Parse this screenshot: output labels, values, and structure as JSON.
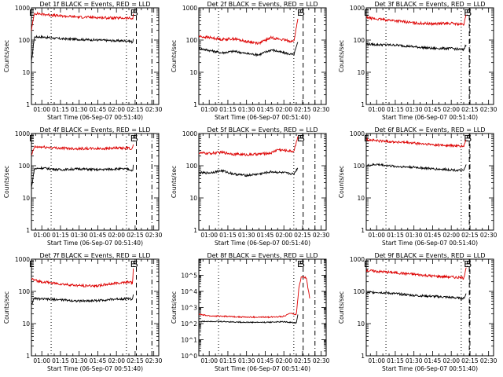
{
  "figure": {
    "panel_count": 9,
    "background": "#ffffff",
    "colors": {
      "events": "#000000",
      "lld": "#dd0000",
      "axes": "#000000"
    }
  },
  "chart_data": [
    {
      "type": "line",
      "title": "Det 1f BLACK = Events, RED = LLD",
      "xlabel": "Start Time (06-Sep-07 00:51:40)",
      "ylabel": "Counts/sec",
      "x_range": [
        "00:51:40",
        "02:34:00"
      ],
      "x_ticks": [
        "01:00",
        "01:15",
        "01:30",
        "01:45",
        "02:00",
        "02:15",
        "02:30"
      ],
      "ylim": [
        1,
        1000
      ],
      "y_ticks": [
        "1",
        "10",
        "100",
        "1000"
      ],
      "y_scale": "log",
      "markers": [
        {
          "label": "E",
          "time": "00:51:55"
        },
        {
          "label": "E",
          "time": "02:13:20"
        },
        {
          "label": "S",
          "time": "02:15:10"
        }
      ],
      "vlines": [
        {
          "time": "01:07:30",
          "style": "dotted"
        },
        {
          "time": "02:08:00",
          "style": "dotted"
        },
        {
          "time": "02:16:00",
          "style": "dashed"
        },
        {
          "time": "02:28:30",
          "style": "dashdot"
        }
      ],
      "series": [
        {
          "name": "Events",
          "color": "#000000",
          "x": [
            "00:51:40",
            "00:54:00",
            "01:00",
            "01:15",
            "01:30",
            "01:45",
            "02:00",
            "02:10",
            "02:13:00",
            "02:13:40"
          ],
          "values": [
            20,
            125,
            125,
            110,
            105,
            100,
            95,
            95,
            85,
            120
          ]
        },
        {
          "name": "LLD",
          "color": "#dd0000",
          "x": [
            "00:51:40",
            "00:54:00",
            "01:00",
            "01:15",
            "01:30",
            "01:45",
            "02:00",
            "02:10",
            "02:13:00",
            "02:13:40"
          ],
          "values": [
            200,
            680,
            640,
            560,
            520,
            500,
            480,
            480,
            450,
            650
          ]
        }
      ]
    },
    {
      "type": "line",
      "title": "Det 2f BLACK = Events, RED = LLD",
      "xlabel": "Start Time (06-Sep-07 00:51:40)",
      "ylabel": "Counts/sec",
      "x_range": [
        "00:51:40",
        "02:34:00"
      ],
      "x_ticks": [
        "01:00",
        "01:15",
        "01:30",
        "01:45",
        "02:00",
        "02:15",
        "02:30"
      ],
      "ylim": [
        1,
        1000
      ],
      "y_ticks": [
        "1",
        "10",
        "100",
        "1000"
      ],
      "y_scale": "log",
      "markers": [
        {
          "label": "E",
          "time": "02:12:50"
        },
        {
          "label": "S",
          "time": "02:14:40"
        }
      ],
      "vlines": [
        {
          "time": "01:07:30",
          "style": "dotted"
        },
        {
          "time": "02:08:00",
          "style": "dotted"
        },
        {
          "time": "02:15:30",
          "style": "dashed"
        },
        {
          "time": "02:25:00",
          "style": "dashdot"
        }
      ],
      "series": [
        {
          "name": "Events",
          "color": "#000000",
          "x": [
            "00:51:40",
            "01:00",
            "01:10",
            "01:20",
            "01:30",
            "01:40",
            "01:50",
            "02:00",
            "02:08",
            "02:11:30"
          ],
          "values": [
            55,
            48,
            40,
            45,
            38,
            35,
            50,
            40,
            35,
            90
          ]
        },
        {
          "name": "LLD",
          "color": "#dd0000",
          "x": [
            "00:51:40",
            "01:00",
            "01:10",
            "01:20",
            "01:30",
            "01:40",
            "01:50",
            "02:00",
            "02:08",
            "02:11:30"
          ],
          "values": [
            130,
            120,
            105,
            110,
            90,
            80,
            120,
            100,
            90,
            500
          ]
        }
      ]
    },
    {
      "type": "line",
      "title": "Det 3f BLACK = Events, RED = LLD",
      "xlabel": "Start Time (06-Sep-07 00:51:40)",
      "ylabel": "Counts/sec",
      "x_range": [
        "00:51:40",
        "02:34:00"
      ],
      "x_ticks": [
        "01:00",
        "01:15",
        "01:30",
        "01:45",
        "02:00",
        "02:15",
        "02:30"
      ],
      "ylim": [
        1,
        1000
      ],
      "y_ticks": [
        "1",
        "10",
        "100",
        "1000"
      ],
      "y_scale": "log",
      "markers": [
        {
          "label": "E",
          "time": "00:51:55"
        },
        {
          "label": "E",
          "time": "02:12:20"
        },
        {
          "label": "S",
          "time": "02:14:10"
        }
      ],
      "vlines": [
        {
          "time": "01:07:30",
          "style": "dotted"
        },
        {
          "time": "02:08:00",
          "style": "dotted"
        },
        {
          "time": "02:14:30",
          "style": "dashed"
        },
        {
          "time": "02:15:00",
          "style": "dashdot"
        }
      ],
      "series": [
        {
          "name": "Events",
          "color": "#000000",
          "x": [
            "00:51:40",
            "01:00",
            "01:15",
            "01:30",
            "01:45",
            "02:00",
            "02:10",
            "02:12:20"
          ],
          "values": [
            75,
            72,
            70,
            62,
            55,
            55,
            50,
            80
          ]
        },
        {
          "name": "LLD",
          "color": "#dd0000",
          "x": [
            "00:51:40",
            "01:00",
            "01:15",
            "01:30",
            "01:45",
            "02:00",
            "02:10",
            "02:12:20"
          ],
          "values": [
            500,
            450,
            400,
            340,
            320,
            330,
            300,
            650
          ]
        }
      ]
    },
    {
      "type": "line",
      "title": "Det 4f BLACK = Events, RED = LLD",
      "xlabel": "Start Time (06-Sep-07 00:51:40)",
      "ylabel": "Counts/sec",
      "x_range": [
        "00:51:40",
        "02:34:00"
      ],
      "x_ticks": [
        "01:00",
        "01:15",
        "01:30",
        "01:45",
        "02:00",
        "02:15",
        "02:30"
      ],
      "ylim": [
        1,
        1000
      ],
      "y_ticks": [
        "1",
        "10",
        "100",
        "1000"
      ],
      "y_scale": "log",
      "markers": [
        {
          "label": "E",
          "time": "00:51:55"
        },
        {
          "label": "E",
          "time": "02:13:20"
        },
        {
          "label": "S",
          "time": "02:15:10"
        }
      ],
      "vlines": [
        {
          "time": "01:07:30",
          "style": "dotted"
        },
        {
          "time": "02:08:00",
          "style": "dotted"
        },
        {
          "time": "02:16:00",
          "style": "dashed"
        },
        {
          "time": "02:28:30",
          "style": "dashdot"
        }
      ],
      "series": [
        {
          "name": "Events",
          "color": "#000000",
          "x": [
            "00:51:40",
            "00:54:00",
            "01:00",
            "01:15",
            "01:30",
            "01:45",
            "02:00",
            "02:10",
            "02:13:00",
            "02:13:40"
          ],
          "values": [
            20,
            80,
            85,
            75,
            80,
            75,
            80,
            78,
            70,
            110
          ]
        },
        {
          "name": "LLD",
          "color": "#dd0000",
          "x": [
            "00:51:40",
            "00:54:00",
            "01:00",
            "01:15",
            "01:30",
            "01:45",
            "02:00",
            "02:10",
            "02:13:00",
            "02:13:40"
          ],
          "values": [
            200,
            380,
            380,
            350,
            340,
            340,
            350,
            350,
            330,
            500
          ]
        }
      ]
    },
    {
      "type": "line",
      "title": "Det 5f BLACK = Events, RED = LLD",
      "xlabel": "Start Time (06-Sep-07 00:51:40)",
      "ylabel": "Counts/sec",
      "x_range": [
        "00:51:40",
        "02:34:00"
      ],
      "x_ticks": [
        "01:00",
        "01:15",
        "01:30",
        "01:45",
        "02:00",
        "02:15",
        "02:30"
      ],
      "ylim": [
        1,
        1000
      ],
      "y_ticks": [
        "1",
        "10",
        "100",
        "1000"
      ],
      "y_scale": "log",
      "markers": [
        {
          "label": "E",
          "time": "02:12:50"
        },
        {
          "label": "S",
          "time": "02:14:40"
        }
      ],
      "vlines": [
        {
          "time": "01:07:30",
          "style": "dotted"
        },
        {
          "time": "02:08:00",
          "style": "dotted"
        },
        {
          "time": "02:15:30",
          "style": "dashed"
        },
        {
          "time": "02:25:00",
          "style": "dashdot"
        }
      ],
      "series": [
        {
          "name": "Events",
          "color": "#000000",
          "x": [
            "00:51:40",
            "01:00",
            "01:10",
            "01:20",
            "01:30",
            "01:40",
            "01:50",
            "02:00",
            "02:08",
            "02:11:30"
          ],
          "values": [
            60,
            60,
            70,
            55,
            50,
            55,
            65,
            60,
            55,
            90
          ]
        },
        {
          "name": "LLD",
          "color": "#dd0000",
          "x": [
            "00:51:40",
            "01:00",
            "01:10",
            "01:20",
            "01:30",
            "01:40",
            "01:50",
            "01:55",
            "02:00",
            "02:08",
            "02:11:30"
          ],
          "values": [
            250,
            240,
            260,
            230,
            220,
            230,
            250,
            320,
            300,
            280,
            900
          ]
        }
      ]
    },
    {
      "type": "line",
      "title": "Det 6f BLACK = Events, RED = LLD",
      "xlabel": "Start Time (06-Sep-07 00:51:40)",
      "ylabel": "Counts/sec",
      "x_range": [
        "00:51:40",
        "02:34:00"
      ],
      "x_ticks": [
        "01:00",
        "01:15",
        "01:30",
        "01:45",
        "02:00",
        "02:15",
        "02:30"
      ],
      "ylim": [
        1,
        1000
      ],
      "y_ticks": [
        "1",
        "10",
        "100",
        "1000"
      ],
      "y_scale": "log",
      "markers": [
        {
          "label": "E",
          "time": "00:51:55"
        },
        {
          "label": "E",
          "time": "02:12:20"
        },
        {
          "label": "S",
          "time": "02:14:10"
        }
      ],
      "vlines": [
        {
          "time": "01:07:30",
          "style": "dotted"
        },
        {
          "time": "02:08:00",
          "style": "dotted"
        },
        {
          "time": "02:14:30",
          "style": "dashed"
        },
        {
          "time": "02:15:00",
          "style": "dashdot"
        }
      ],
      "series": [
        {
          "name": "Events",
          "color": "#000000",
          "x": [
            "00:51:40",
            "01:00",
            "01:15",
            "01:30",
            "01:45",
            "02:00",
            "02:10",
            "02:12:20"
          ],
          "values": [
            100,
            110,
            95,
            90,
            80,
            75,
            70,
            110
          ]
        },
        {
          "name": "LLD",
          "color": "#dd0000",
          "x": [
            "00:51:40",
            "01:00",
            "01:15",
            "01:30",
            "01:45",
            "02:00",
            "02:10",
            "02:12:20"
          ],
          "values": [
            650,
            600,
            550,
            500,
            450,
            420,
            400,
            700
          ]
        }
      ]
    },
    {
      "type": "line",
      "title": "Det 7f BLACK = Events, RED = LLD",
      "xlabel": "Start Time (06-Sep-07 00:51:40)",
      "ylabel": "Counts/sec",
      "x_range": [
        "00:51:40",
        "02:34:00"
      ],
      "x_ticks": [
        "01:00",
        "01:15",
        "01:30",
        "01:45",
        "02:00",
        "02:15",
        "02:30"
      ],
      "ylim": [
        1,
        1000
      ],
      "y_ticks": [
        "1",
        "10",
        "100",
        "1000"
      ],
      "y_scale": "log",
      "markers": [
        {
          "label": "E",
          "time": "00:51:55"
        },
        {
          "label": "E",
          "time": "02:13:20"
        },
        {
          "label": "S",
          "time": "02:15:10"
        }
      ],
      "vlines": [
        {
          "time": "01:07:30",
          "style": "dotted"
        },
        {
          "time": "02:08:00",
          "style": "dotted"
        },
        {
          "time": "02:16:00",
          "style": "dashed"
        },
        {
          "time": "02:28:30",
          "style": "dashdot"
        }
      ],
      "series": [
        {
          "name": "Events",
          "color": "#000000",
          "x": [
            "00:51:40",
            "00:54:00",
            "01:00",
            "01:15",
            "01:30",
            "01:45",
            "02:00",
            "02:10",
            "02:13:00",
            "02:13:40"
          ],
          "values": [
            40,
            60,
            58,
            55,
            50,
            52,
            58,
            60,
            55,
            90
          ]
        },
        {
          "name": "LLD",
          "color": "#dd0000",
          "x": [
            "00:51:40",
            "00:54:00",
            "01:00",
            "01:15",
            "01:30",
            "01:45",
            "02:00",
            "02:10",
            "02:13:00",
            "02:13:40"
          ],
          "values": [
            250,
            220,
            200,
            170,
            150,
            150,
            180,
            200,
            180,
            600
          ]
        }
      ]
    },
    {
      "type": "line",
      "title": "Det 8f BLACK = Events, RED = LLD",
      "xlabel": "Start Time (06-Sep-07 00:51:40)",
      "ylabel": "Counts/sec",
      "x_range": [
        "00:51:40",
        "02:34:00"
      ],
      "x_ticks": [
        "01:00",
        "01:15",
        "01:30",
        "01:45",
        "02:00",
        "02:15",
        "02:30"
      ],
      "ylim": [
        1,
        1000000
      ],
      "y_ticks": [
        "10^0",
        "10^1",
        "10^2",
        "10^3",
        "10^4",
        "10^5"
      ],
      "y_scale": "log",
      "markers": [
        {
          "label": "E",
          "time": "02:12:50"
        },
        {
          "label": "S",
          "time": "02:14:40"
        }
      ],
      "vlines": [
        {
          "time": "01:07:30",
          "style": "dotted"
        },
        {
          "time": "02:08:00",
          "style": "dotted"
        },
        {
          "time": "02:15:30",
          "style": "dashed"
        },
        {
          "time": "02:25:00",
          "style": "dashdot"
        }
      ],
      "series": [
        {
          "name": "Events",
          "color": "#000000",
          "x": [
            "00:51:40",
            "01:00",
            "01:15",
            "01:30",
            "01:45",
            "02:00",
            "02:10",
            "02:11:30"
          ],
          "values": [
            130,
            140,
            130,
            120,
            120,
            130,
            110,
            500
          ]
        },
        {
          "name": "LLD",
          "color": "#dd0000",
          "x": [
            "00:51:40",
            "00:54",
            "01:00",
            "01:15",
            "01:30",
            "01:45",
            "02:00",
            "02:05",
            "02:10",
            "02:12:00",
            "02:14:00",
            "02:18:00",
            "02:21:00"
          ],
          "values": [
            400,
            350,
            300,
            280,
            250,
            250,
            280,
            450,
            350,
            15000,
            80000,
            70000,
            3000
          ]
        }
      ]
    },
    {
      "type": "line",
      "title": "Det 9f BLACK = Events, RED = LLD",
      "xlabel": "Start Time (06-Sep-07 00:51:40)",
      "ylabel": "Counts/sec",
      "x_range": [
        "00:51:40",
        "02:34:00"
      ],
      "x_ticks": [
        "01:00",
        "01:15",
        "01:30",
        "01:45",
        "02:00",
        "02:15",
        "02:30"
      ],
      "ylim": [
        1,
        1000
      ],
      "y_ticks": [
        "1",
        "10",
        "100",
        "1000"
      ],
      "y_scale": "log",
      "markers": [
        {
          "label": "E",
          "time": "00:51:55"
        },
        {
          "label": "E",
          "time": "02:12:20"
        },
        {
          "label": "S",
          "time": "02:14:10"
        }
      ],
      "vlines": [
        {
          "time": "01:07:30",
          "style": "dotted"
        },
        {
          "time": "02:08:00",
          "style": "dotted"
        },
        {
          "time": "02:14:30",
          "style": "dashed"
        },
        {
          "time": "02:15:00",
          "style": "dashdot"
        }
      ],
      "series": [
        {
          "name": "Events",
          "color": "#000000",
          "x": [
            "00:51:40",
            "01:00",
            "01:15",
            "01:30",
            "01:45",
            "02:00",
            "02:10",
            "02:12:20"
          ],
          "values": [
            90,
            95,
            85,
            75,
            70,
            65,
            60,
            90
          ]
        },
        {
          "name": "LLD",
          "color": "#dd0000",
          "x": [
            "00:51:40",
            "01:00",
            "01:15",
            "01:30",
            "01:45",
            "02:00",
            "02:10",
            "02:12:20"
          ],
          "values": [
            450,
            420,
            380,
            340,
            300,
            280,
            260,
            650
          ]
        }
      ]
    }
  ]
}
